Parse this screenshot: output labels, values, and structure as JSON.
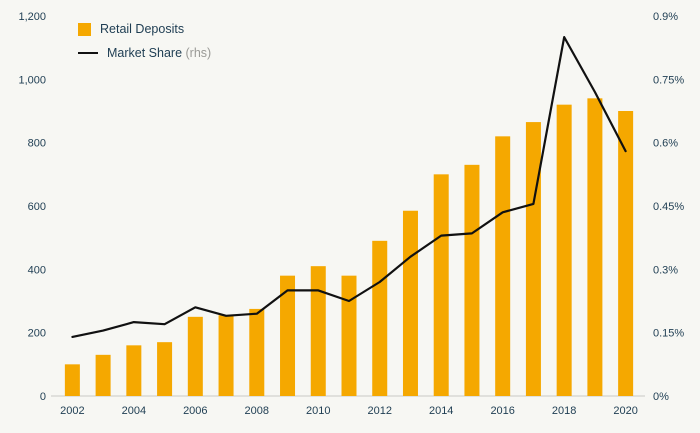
{
  "colors": {
    "background": "#f7f7f3",
    "bar": "#f5a800",
    "line": "#111111",
    "axis_text": "#1e3d52",
    "axis_line": "#c9c9c4",
    "rhs_text": "#9a9a96"
  },
  "legend": {
    "series1": "Retail Deposits",
    "series2": "Market Share",
    "series2_suffix": "(rhs)"
  },
  "chart_data": {
    "type": "bar",
    "subtype": "bar+line combo, dual axis",
    "x": [
      2002,
      2003,
      2004,
      2005,
      2006,
      2007,
      2008,
      2009,
      2010,
      2011,
      2012,
      2013,
      2014,
      2015,
      2016,
      2017,
      2018,
      2019,
      2020
    ],
    "series": [
      {
        "name": "Retail Deposits",
        "type": "bar",
        "axis": "left",
        "color": "#f5a800",
        "values": [
          100,
          130,
          160,
          170,
          250,
          255,
          275,
          380,
          410,
          380,
          490,
          585,
          700,
          730,
          820,
          865,
          920,
          940,
          900
        ]
      },
      {
        "name": "Market Share",
        "type": "line",
        "axis": "right",
        "color": "#111111",
        "values": [
          0.14,
          0.155,
          0.175,
          0.17,
          0.21,
          0.19,
          0.195,
          0.25,
          0.25,
          0.225,
          0.27,
          0.33,
          0.38,
          0.385,
          0.435,
          0.455,
          0.85,
          0.72,
          0.58
        ]
      }
    ],
    "left_axis": {
      "min": 0,
      "max": 1200,
      "ticks": [
        0,
        200,
        400,
        600,
        800,
        1000,
        1200
      ],
      "tick_labels": [
        "0",
        "200",
        "400",
        "600",
        "800",
        "1,000",
        "1,200"
      ]
    },
    "right_axis": {
      "min": 0,
      "max": 0.9,
      "ticks": [
        0,
        0.15,
        0.3,
        0.45,
        0.6,
        0.75,
        0.9
      ],
      "tick_labels": [
        "0%",
        "0.15%",
        "0.3%",
        "0.45%",
        "0.6%",
        "0.75%",
        "0.9%"
      ]
    },
    "x_tick_labels": [
      "2002",
      "2004",
      "2006",
      "2008",
      "2010",
      "2012",
      "2014",
      "2016",
      "2018",
      "2020"
    ],
    "grid": false,
    "legend_position": "top-left"
  }
}
